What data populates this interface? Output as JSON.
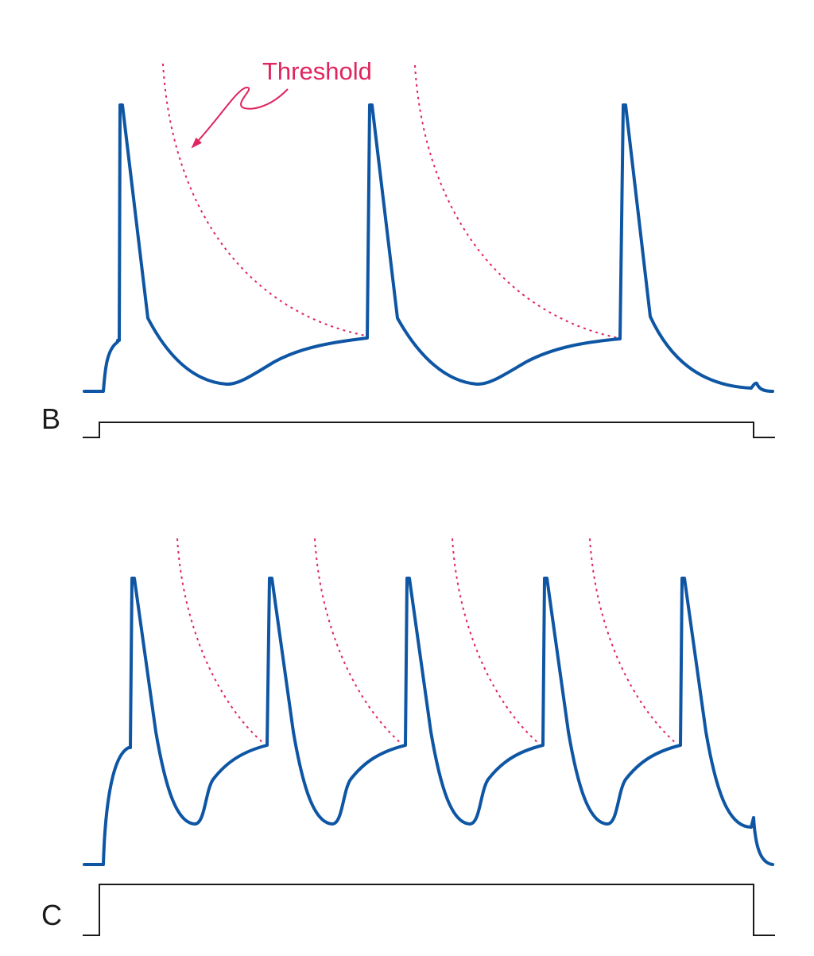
{
  "annotation": {
    "threshold_label": "Threshold"
  },
  "panels": {
    "b": {
      "label": "B"
    },
    "c": {
      "label": "C"
    }
  },
  "colors": {
    "trace": "#0e56a4",
    "threshold": "#e0245e",
    "stimulus": "#1a1a1a",
    "label": "#1a1a1a"
  }
}
